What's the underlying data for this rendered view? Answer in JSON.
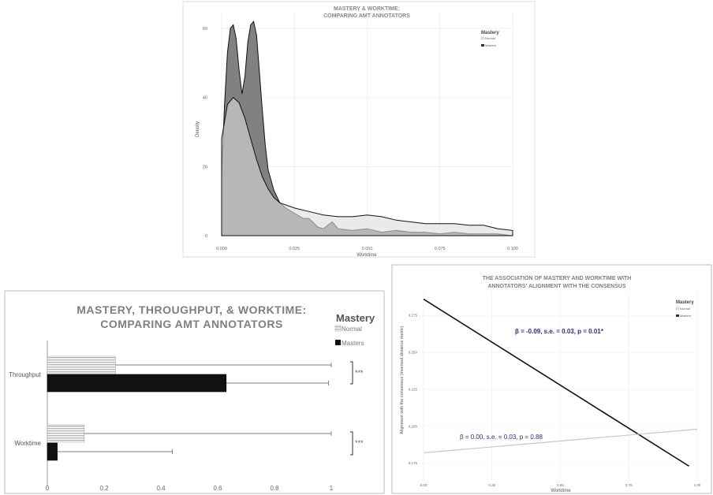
{
  "chart_data": [
    {
      "type": "area",
      "title_line1": "MASTERY & WORKTIME:",
      "title_line2": "COMPARING AMT ANNOTATORS",
      "xlabel": "Worktime",
      "ylabel": "Density",
      "xlim": [
        0,
        0.1
      ],
      "ylim": [
        0,
        65
      ],
      "xticks": [
        "0.000",
        "0.025",
        "0.050",
        "0.075",
        "0.100"
      ],
      "yticks": [
        "0",
        "20",
        "40",
        "60"
      ],
      "grid": true,
      "legend_title": "Mastery",
      "legend": [
        "Normal",
        "Masters"
      ],
      "series": [
        {
          "name": "Normal",
          "color": "#e6e6e6",
          "x": [
            0,
            0.002,
            0.004,
            0.006,
            0.008,
            0.01,
            0.012,
            0.014,
            0.016,
            0.018,
            0.02,
            0.025,
            0.03,
            0.035,
            0.04,
            0.045,
            0.05,
            0.055,
            0.06,
            0.065,
            0.07,
            0.075,
            0.08,
            0.085,
            0.09,
            0.095,
            0.1
          ],
          "y": [
            28,
            38,
            40,
            38.5,
            34,
            28,
            22,
            17,
            13.5,
            11,
            9.5,
            8,
            7,
            6,
            5.5,
            5.5,
            6,
            5.5,
            4.5,
            4,
            3.5,
            3.5,
            3.5,
            3,
            3,
            2,
            1.5
          ]
        },
        {
          "name": "Masters",
          "color": "#9e9e9e",
          "x": [
            0,
            0.001,
            0.002,
            0.003,
            0.004,
            0.005,
            0.006,
            0.007,
            0.008,
            0.009,
            0.01,
            0.011,
            0.012,
            0.013,
            0.014,
            0.015,
            0.016,
            0.018,
            0.02,
            0.022,
            0.025,
            0.028,
            0.03,
            0.033,
            0.035,
            0.038,
            0.04,
            0.045,
            0.05,
            0.055,
            0.06,
            0.065,
            0.07,
            0.075,
            0.08,
            0.085,
            0.09,
            0.095,
            0.1
          ],
          "y": [
            18,
            38,
            53,
            60,
            61,
            57,
            48,
            41,
            46,
            56,
            61,
            62,
            58,
            47,
            36,
            26,
            19,
            13,
            9.5,
            8,
            6.5,
            5,
            5,
            2.5,
            2,
            4,
            2,
            1.5,
            2,
            1,
            1.5,
            1,
            1,
            0.5,
            1,
            0.5,
            0.5,
            0.5,
            0
          ]
        }
      ]
    },
    {
      "type": "bar",
      "orientation": "horizontal",
      "title_line1": "MASTERY, THROUGHPUT, & WORKTIME:",
      "title_line2": "COMPARING AMT ANNOTATORS",
      "categories": [
        "Throughput",
        "Worktime"
      ],
      "xlim": [
        0,
        1
      ],
      "xticks": [
        "0",
        "0.2",
        "0.4",
        "0.6",
        "0.8",
        "1"
      ],
      "legend_title": "Mastery",
      "legend": [
        "Normal",
        "Masters"
      ],
      "significance": "***",
      "series": [
        {
          "name": "Normal",
          "values": [
            0.24,
            0.13
          ],
          "errors_upper": [
            1.0,
            1.0
          ],
          "pattern": "horizontal-lines"
        },
        {
          "name": "Masters",
          "values": [
            0.63,
            0.035
          ],
          "errors_upper": [
            0.99,
            0.44
          ],
          "color": "#111111"
        }
      ]
    },
    {
      "type": "line",
      "title_line1": "THE ASSOCIATION OF MASTERY AND WORKTIME WITH",
      "title_line2": "ANNOTATORS' ALIGNMENT WITH THE CONSENSUS",
      "xlabel": "Worktime",
      "ylabel": "Alignment with the consensus (inversed distance metric)",
      "xlim": [
        0,
        1
      ],
      "ylim": [
        0.17,
        0.29
      ],
      "xticks": [
        "0.00",
        "0.25",
        "0.50",
        "0.75",
        "1.00"
      ],
      "yticks": [
        "0.175",
        "0.200",
        "0.225",
        "0.250",
        "0.275"
      ],
      "grid": true,
      "legend_title": "Mastery",
      "legend": [
        "Normal",
        "Masters"
      ],
      "annotations": [
        "β = -0.09, s.e. = 0.03, p = 0.01*",
        "β = 0.00, s.e. = 0.03, p = 0.88"
      ],
      "series": [
        {
          "name": "Masters",
          "color": "#111111",
          "x": [
            0,
            0.97
          ],
          "y": [
            0.286,
            0.173
          ]
        },
        {
          "name": "Normal",
          "color": "#c8c8c8",
          "x": [
            0,
            1.0
          ],
          "y": [
            0.182,
            0.198
          ]
        }
      ]
    }
  ]
}
